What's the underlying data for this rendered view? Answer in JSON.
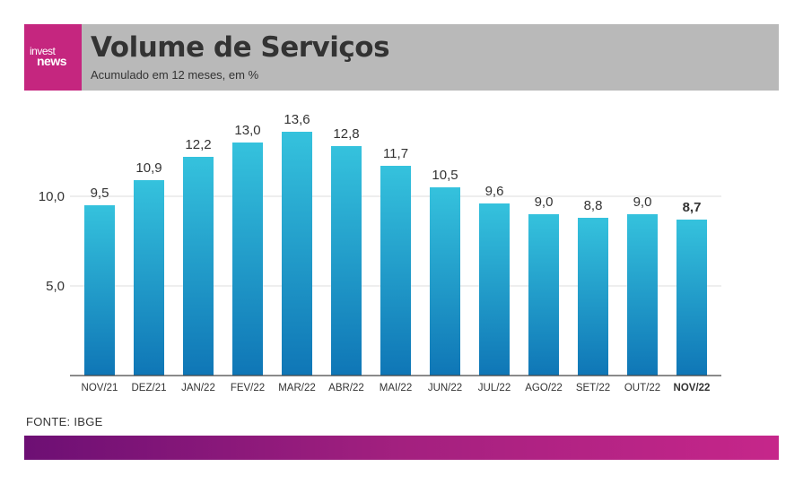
{
  "logo": {
    "line1": "invest",
    "line2": "news"
  },
  "header": {
    "title": "Volume de Serviços",
    "subtitle": "Acumulado em 12 meses, em %"
  },
  "source": "FONTE: IBGE",
  "watermark": "investnews",
  "colors": {
    "bar_top": "#35c2dd",
    "bar_bottom": "#0f76b6",
    "logo_bg": "#c5267f",
    "header_bg": "#b9b9b9"
  },
  "chart_data": {
    "type": "bar",
    "title": "Volume de Serviços",
    "subtitle": "Acumulado em 12 meses, em %",
    "categories": [
      "NOV/21",
      "DEZ/21",
      "JAN/22",
      "FEV/22",
      "MAR/22",
      "ABR/22",
      "MAI/22",
      "JUN/22",
      "JUL/22",
      "AGO/22",
      "SET/22",
      "OUT/22",
      "NOV/22"
    ],
    "values": [
      9.5,
      10.9,
      12.2,
      13.0,
      13.6,
      12.8,
      11.7,
      10.5,
      9.6,
      9.0,
      8.8,
      9.0,
      8.7
    ],
    "value_labels": [
      "9,5",
      "10,9",
      "12,2",
      "13,0",
      "13,6",
      "12,8",
      "11,7",
      "10,5",
      "9,6",
      "9,0",
      "8,8",
      "9,0",
      "8,7"
    ],
    "highlight_index": 12,
    "yticks": [
      5,
      10
    ],
    "ytick_labels": [
      "5,0",
      "10,0"
    ],
    "ylim": [
      0,
      15
    ],
    "grid": true,
    "xlabel": "",
    "ylabel": ""
  }
}
